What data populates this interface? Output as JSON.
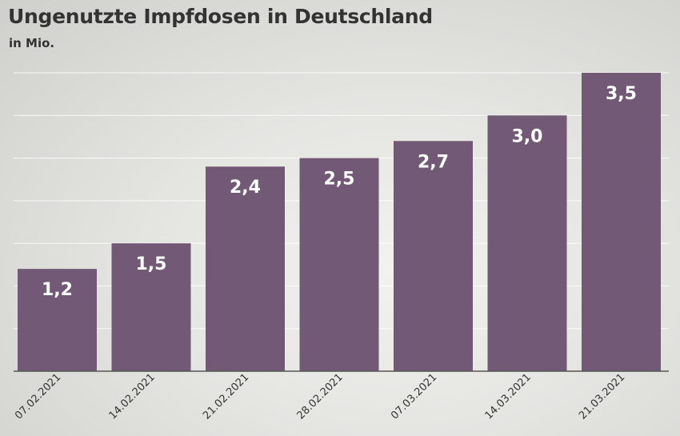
{
  "chart_data": {
    "type": "bar",
    "title": "Ungenutzte Impfdosen in Deutschland",
    "unit": "in Mio.",
    "categories": [
      "07.02.2021",
      "14.02.2021",
      "21.02.2021",
      "28.02.2021",
      "07.03.2021",
      "14.03.2021",
      "21.03.2021"
    ],
    "values": [
      1.2,
      1.5,
      2.4,
      2.5,
      2.7,
      3.0,
      3.5
    ],
    "labels": [
      "1,2",
      "1,5",
      "2,4",
      "2,5",
      "2,7",
      "3,0",
      "3,5"
    ],
    "ylim": [
      0,
      3.5
    ],
    "grid": true,
    "bar_color": "#725a76",
    "label_color": "#ffffff"
  }
}
